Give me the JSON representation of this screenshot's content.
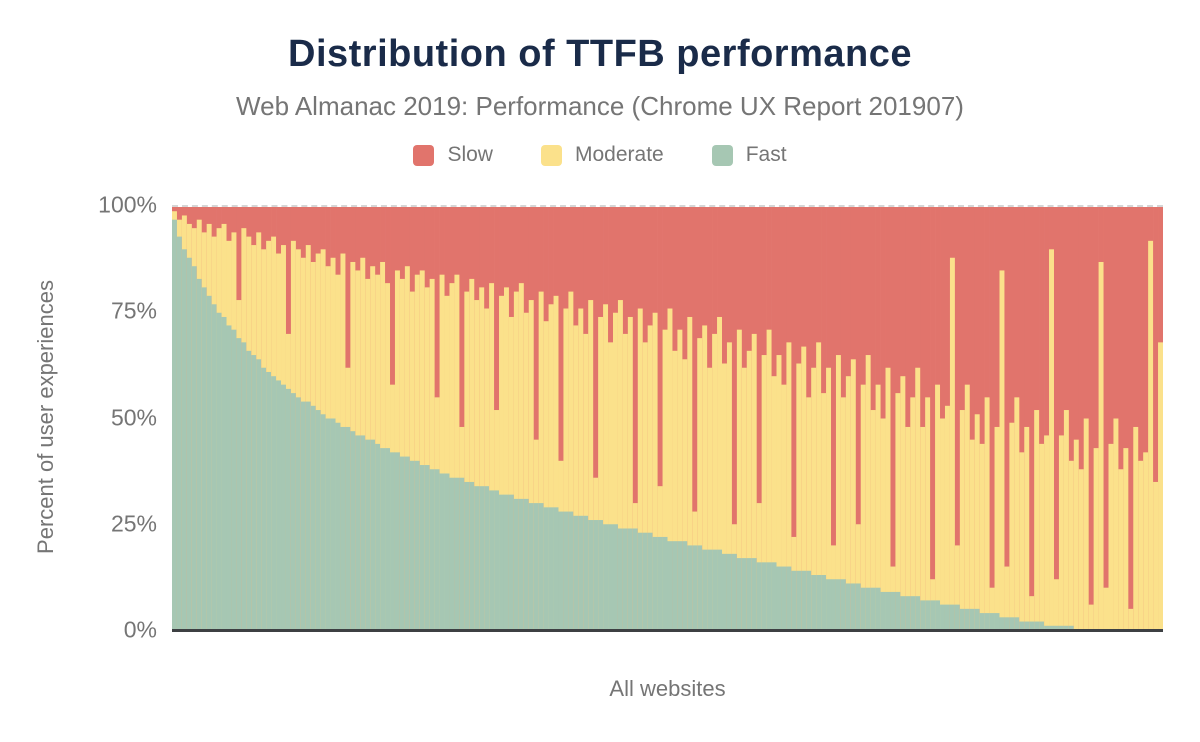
{
  "header": {
    "title": "Distribution of TTFB performance",
    "subtitle": "Web Almanac 2019: Performance (Chrome UX Report 201907)"
  },
  "legend": [
    {
      "label": "Slow",
      "color": "#e1746c"
    },
    {
      "label": "Moderate",
      "color": "#fbe18b"
    },
    {
      "label": "Fast",
      "color": "#a6c7b3"
    }
  ],
  "axes": {
    "y_title": "Percent of user experiences",
    "x_title": "All websites",
    "y_ticks": [
      "100%",
      "75%",
      "50%",
      "25%",
      "0%"
    ]
  },
  "colors": {
    "title": "#1a2b49",
    "muted_text": "#757575",
    "axis_line": "#3d4043",
    "gridline": "#d6d6d6"
  },
  "chart_data": {
    "type": "bar",
    "stacked": true,
    "stack_total": 100,
    "title": "Distribution of TTFB performance",
    "subtitle": "Web Almanac 2019: Performance (Chrome UX Report 201907)",
    "xlabel": "All websites",
    "ylabel": "Percent of user experiences",
    "ylim": [
      0,
      100
    ],
    "y_tick_values": [
      0,
      25,
      50,
      75,
      100
    ],
    "grid": "dashed line at 100% only",
    "legend_position": "top center",
    "series": [
      {
        "name": "Slow",
        "color": "#e1746c",
        "values": [
          1,
          3,
          2,
          4,
          5,
          3,
          6,
          4,
          7,
          5,
          4,
          8,
          6,
          22,
          5,
          7,
          9,
          6,
          10,
          8,
          7,
          11,
          9,
          30,
          8,
          10,
          12,
          9,
          13,
          11,
          10,
          14,
          12,
          16,
          11,
          38,
          13,
          15,
          12,
          17,
          14,
          16,
          13,
          18,
          42,
          15,
          17,
          14,
          20,
          16,
          15,
          19,
          17,
          45,
          16,
          21,
          18,
          16,
          52,
          20,
          17,
          22,
          19,
          24,
          18,
          48,
          21,
          19,
          26,
          20,
          18,
          25,
          22,
          55,
          20,
          27,
          23,
          21,
          60,
          24,
          20,
          28,
          24,
          30,
          22,
          64,
          26,
          23,
          32,
          25,
          22,
          30,
          26,
          70,
          24,
          32,
          28,
          25,
          66,
          29,
          24,
          34,
          29,
          36,
          26,
          72,
          31,
          28,
          38,
          30,
          26,
          37,
          32,
          75,
          29,
          38,
          34,
          30,
          70,
          35,
          29,
          40,
          35,
          42,
          32,
          78,
          37,
          33,
          45,
          38,
          32,
          44,
          38,
          80,
          35,
          45,
          40,
          36,
          75,
          42,
          35,
          48,
          42,
          50,
          38,
          85,
          44,
          40,
          52,
          45,
          38,
          52,
          45,
          88,
          42,
          50,
          47,
          12,
          80,
          48,
          42,
          55,
          49,
          56,
          45,
          90,
          52,
          15,
          85,
          51,
          45,
          58,
          52,
          92,
          48,
          56,
          54,
          10,
          88,
          54,
          48,
          60,
          55,
          62,
          50,
          94,
          57,
          13,
          90,
          56,
          50,
          62,
          57,
          95,
          52,
          60,
          58,
          8,
          65,
          32
        ]
      },
      {
        "name": "Moderate",
        "color": "#fbe18b",
        "values": [
          2,
          4,
          8,
          8,
          9,
          14,
          13,
          17,
          16,
          20,
          22,
          20,
          23,
          9,
          27,
          27,
          26,
          30,
          28,
          31,
          33,
          30,
          33,
          13,
          36,
          35,
          34,
          37,
          34,
          37,
          39,
          36,
          38,
          35,
          41,
          14,
          40,
          39,
          42,
          38,
          41,
          40,
          44,
          39,
          16,
          43,
          42,
          45,
          40,
          44,
          46,
          42,
          45,
          17,
          47,
          42,
          46,
          48,
          12,
          45,
          48,
          44,
          47,
          42,
          49,
          19,
          47,
          49,
          42,
          49,
          51,
          44,
          48,
          15,
          50,
          44,
          48,
          50,
          12,
          48,
          52,
          45,
          49,
          43,
          52,
          10,
          48,
          52,
          43,
          50,
          54,
          46,
          50,
          6,
          53,
          45,
          49,
          53,
          12,
          49,
          55,
          45,
          50,
          43,
          54,
          8,
          49,
          53,
          43,
          51,
          55,
          45,
          50,
          7,
          54,
          45,
          49,
          53,
          14,
          49,
          55,
          44,
          50,
          43,
          53,
          8,
          49,
          53,
          41,
          49,
          55,
          43,
          50,
          8,
          53,
          43,
          49,
          53,
          14,
          48,
          55,
          42,
          48,
          41,
          53,
          6,
          47,
          52,
          40,
          47,
          54,
          41,
          48,
          5,
          51,
          44,
          47,
          82,
          14,
          47,
          53,
          40,
          46,
          40,
          51,
          6,
          44,
          82,
          12,
          46,
          52,
          40,
          46,
          6,
          50,
          42,
          45,
          89,
          11,
          45,
          51,
          39,
          45,
          38,
          50,
          6,
          43,
          87,
          10,
          44,
          50,
          38,
          43,
          5,
          48,
          40,
          42,
          92,
          35,
          68
        ]
      },
      {
        "name": "Fast",
        "color": "#a6c7b3",
        "values": [
          97,
          93,
          90,
          88,
          86,
          83,
          81,
          79,
          77,
          75,
          74,
          72,
          71,
          69,
          68,
          66,
          65,
          64,
          62,
          61,
          60,
          59,
          58,
          57,
          56,
          55,
          54,
          54,
          53,
          52,
          51,
          50,
          50,
          49,
          48,
          48,
          47,
          46,
          46,
          45,
          45,
          44,
          43,
          43,
          42,
          42,
          41,
          41,
          40,
          40,
          39,
          39,
          38,
          38,
          37,
          37,
          36,
          36,
          36,
          35,
          35,
          34,
          34,
          34,
          33,
          33,
          32,
          32,
          32,
          31,
          31,
          31,
          30,
          30,
          30,
          29,
          29,
          29,
          28,
          28,
          28,
          27,
          27,
          27,
          26,
          26,
          26,
          25,
          25,
          25,
          24,
          24,
          24,
          24,
          23,
          23,
          23,
          22,
          22,
          22,
          21,
          21,
          21,
          21,
          20,
          20,
          20,
          19,
          19,
          19,
          19,
          18,
          18,
          18,
          17,
          17,
          17,
          17,
          16,
          16,
          16,
          16,
          15,
          15,
          15,
          14,
          14,
          14,
          14,
          13,
          13,
          13,
          12,
          12,
          12,
          12,
          11,
          11,
          11,
          10,
          10,
          10,
          10,
          9,
          9,
          9,
          9,
          8,
          8,
          8,
          8,
          7,
          7,
          7,
          7,
          6,
          6,
          6,
          6,
          5,
          5,
          5,
          5,
          4,
          4,
          4,
          4,
          3,
          3,
          3,
          3,
          2,
          2,
          2,
          2,
          2,
          1,
          1,
          1,
          1,
          1,
          1,
          0,
          0,
          0,
          0,
          0,
          0,
          0,
          0,
          0,
          0,
          0,
          0,
          0,
          0,
          0,
          0,
          0,
          0
        ]
      }
    ]
  }
}
